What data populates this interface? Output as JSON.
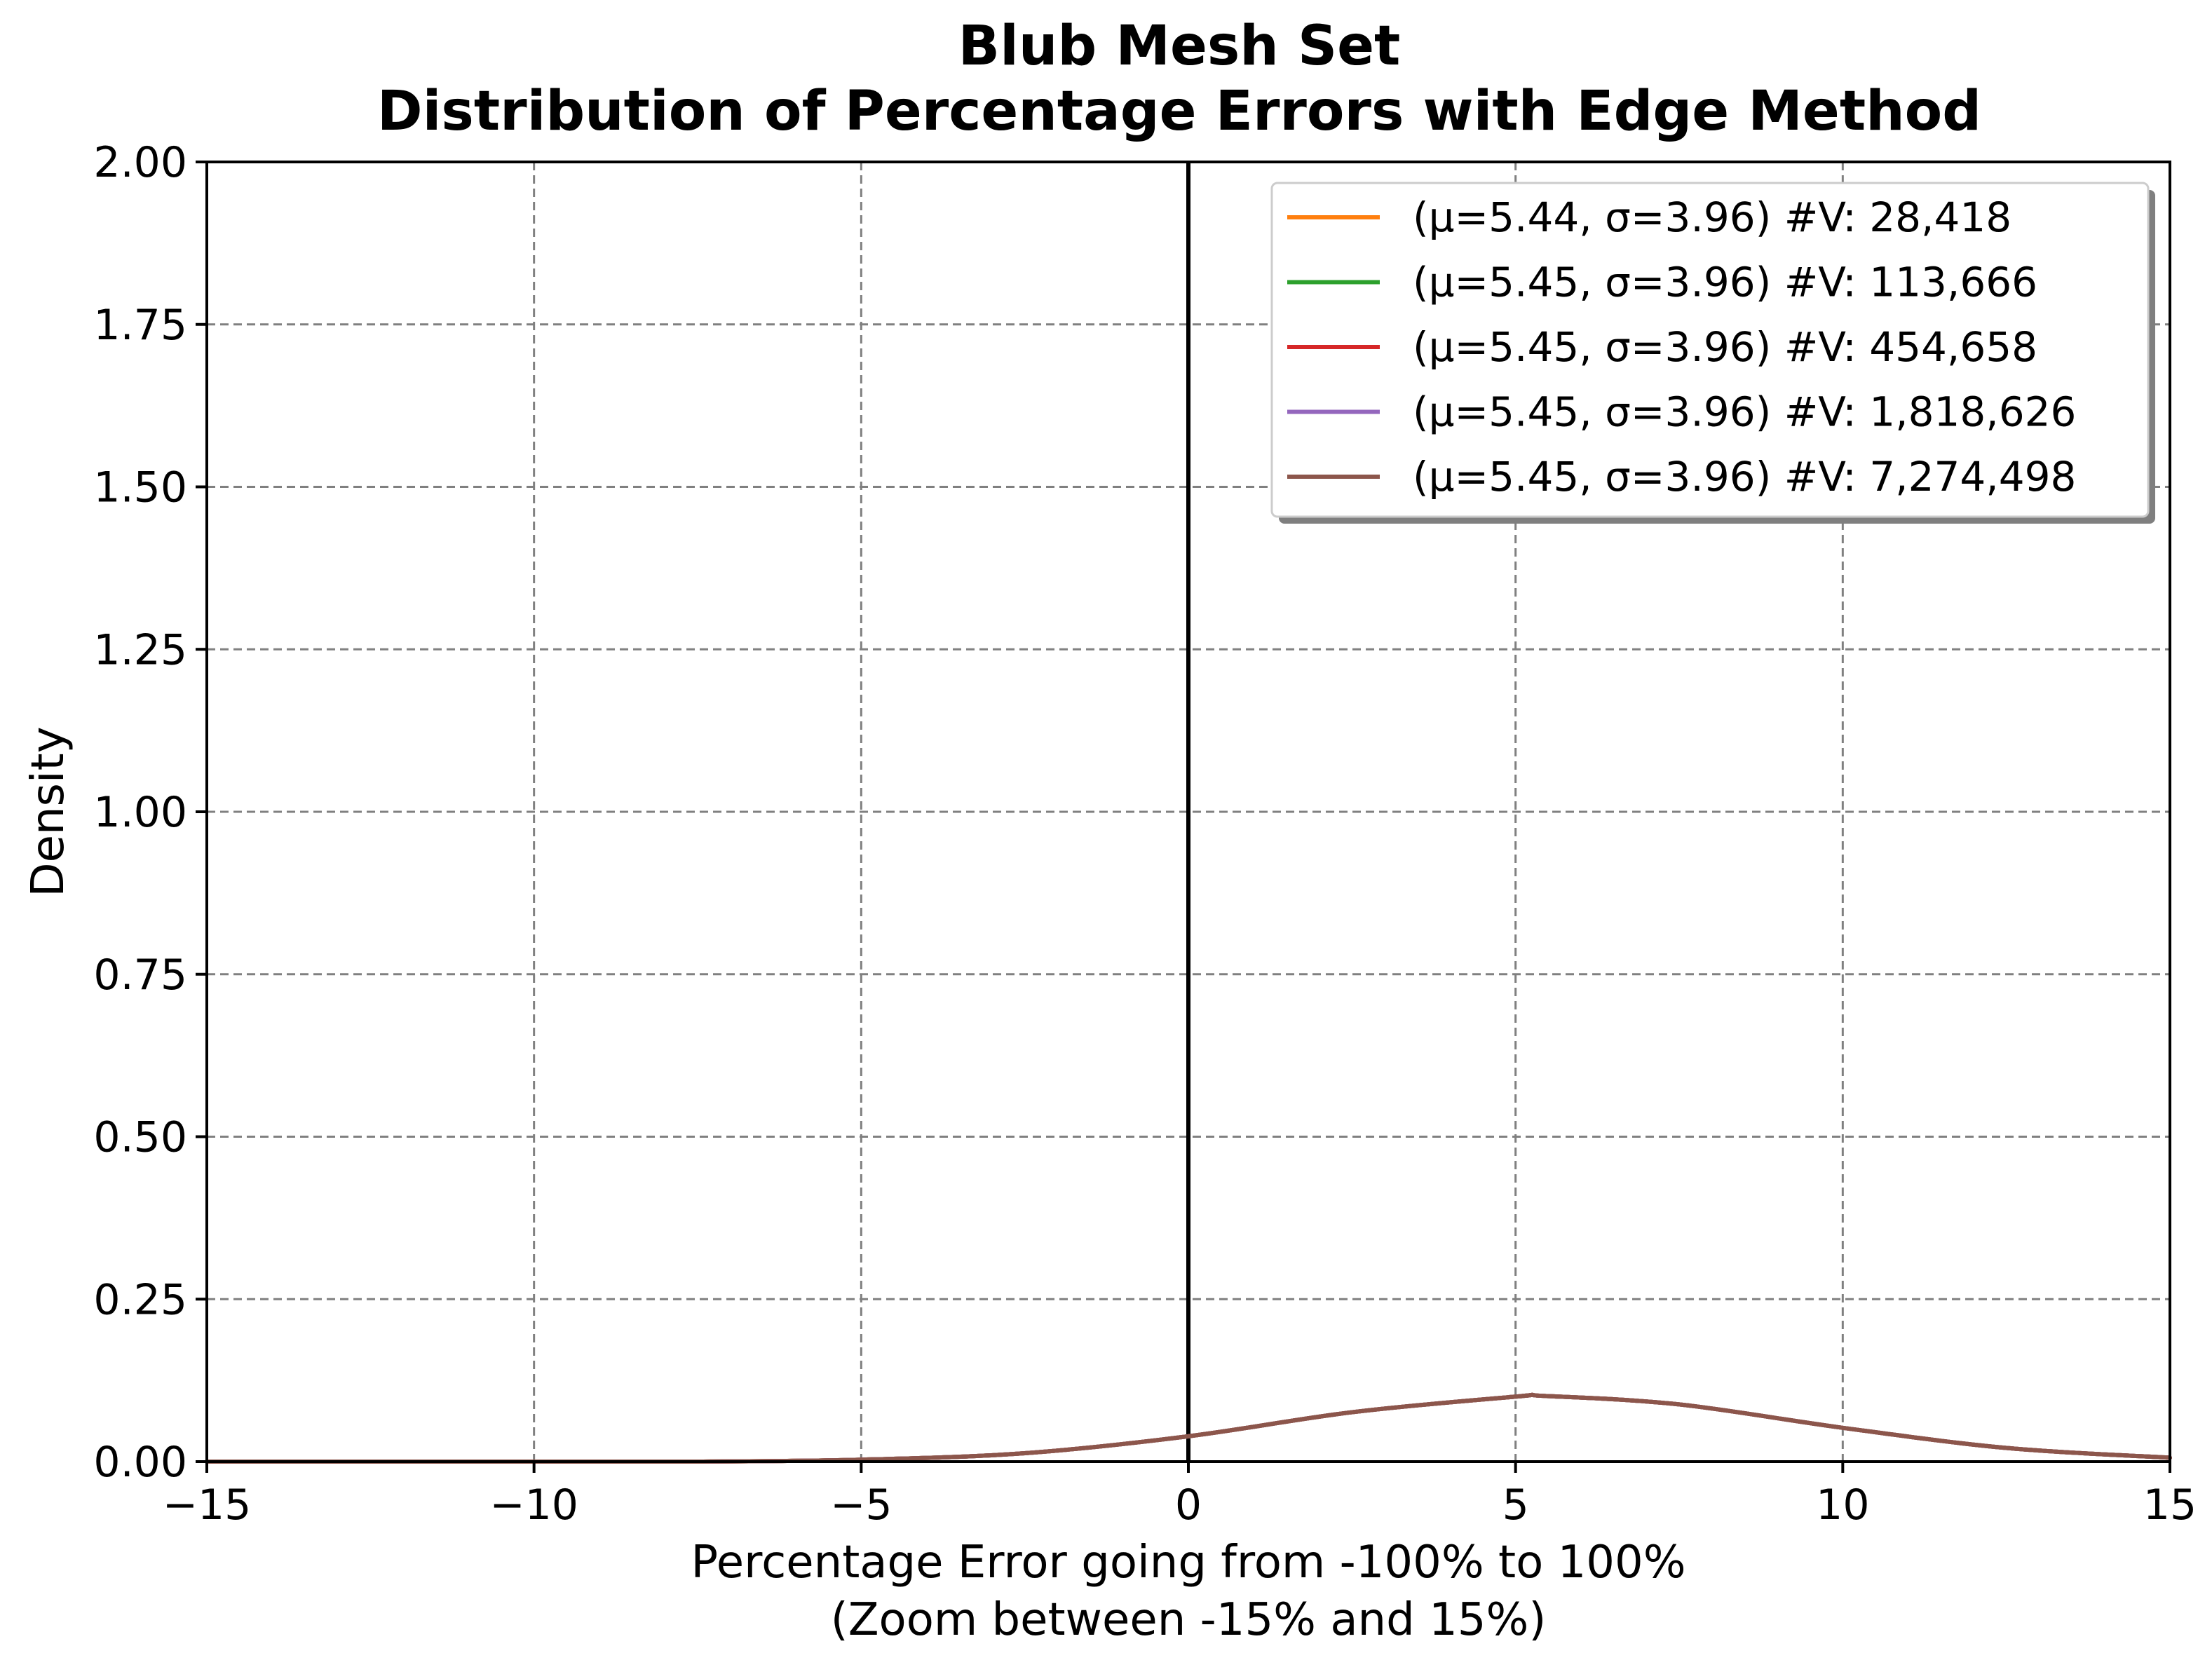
{
  "chart_data": {
    "type": "line",
    "title": "Blub Mesh Set",
    "subtitle": "Distribution of Percentage Errors with Edge Method",
    "xlabel": "Percentage Error going from -100% to 100%",
    "xlabel_line2": "(Zoom between -15% and 15%)",
    "ylabel": "Density",
    "xlim": [
      -15,
      15
    ],
    "ylim": [
      0,
      2.0
    ],
    "grid": true,
    "legend_position": "top-right",
    "x_ticks": [
      "−15",
      "−10",
      "−5",
      "0",
      "5",
      "10",
      "15"
    ],
    "x_tick_values": [
      -15,
      -10,
      -5,
      0,
      5,
      10,
      15
    ],
    "y_ticks": [
      "0.00",
      "0.25",
      "0.50",
      "0.75",
      "1.00",
      "1.25",
      "1.50",
      "1.75",
      "2.00"
    ],
    "y_tick_values": [
      0,
      0.25,
      0.5,
      0.75,
      1.0,
      1.25,
      1.5,
      1.75,
      2.0
    ],
    "reference_line_x": 0,
    "x": [
      -15,
      -12.5,
      -10,
      -7.5,
      -5,
      -2.5,
      0,
      2.5,
      5,
      5.45,
      7.5,
      10,
      12.5,
      15
    ],
    "series": [
      {
        "name": "(μ=5.44, σ=3.96) #V: 28,418",
        "color": "#ff7f0e",
        "values": [
          0.0,
          0.0,
          0.0,
          0.0,
          0.003,
          0.013,
          0.039,
          0.076,
          0.1,
          0.101,
          0.088,
          0.052,
          0.021,
          0.006
        ]
      },
      {
        "name": "(μ=5.45, σ=3.96) #V: 113,666",
        "color": "#2ca02c",
        "values": [
          0.0,
          0.0,
          0.0,
          0.0,
          0.003,
          0.013,
          0.039,
          0.076,
          0.1,
          0.101,
          0.088,
          0.052,
          0.021,
          0.006
        ]
      },
      {
        "name": "(μ=5.45, σ=3.96) #V: 454,658",
        "color": "#d62728",
        "values": [
          0.0,
          0.0,
          0.0,
          0.0,
          0.003,
          0.013,
          0.039,
          0.076,
          0.1,
          0.101,
          0.088,
          0.052,
          0.021,
          0.006
        ]
      },
      {
        "name": "(μ=5.45, σ=3.96) #V: 1,818,626",
        "color": "#9467bd",
        "values": [
          0.0,
          0.0,
          0.0,
          0.0,
          0.003,
          0.013,
          0.039,
          0.076,
          0.1,
          0.101,
          0.088,
          0.052,
          0.021,
          0.006
        ]
      },
      {
        "name": "(μ=5.45, σ=3.96) #V: 7,274,498",
        "color": "#8c564b",
        "values": [
          0.0,
          0.0,
          0.0,
          0.0,
          0.003,
          0.013,
          0.039,
          0.076,
          0.1,
          0.101,
          0.088,
          0.052,
          0.021,
          0.006
        ]
      }
    ]
  }
}
